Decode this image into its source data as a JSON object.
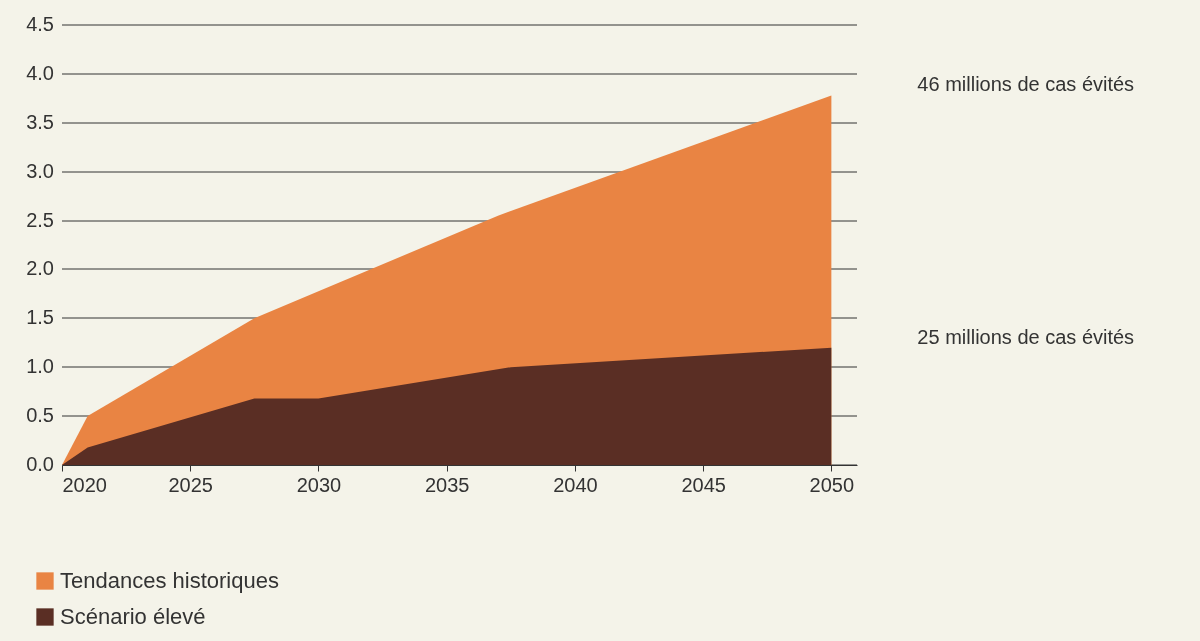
{
  "chart_data": {
    "type": "area",
    "series": [
      {
        "name": "Tendances historiques",
        "color": "#e98443",
        "x": [
          2020,
          2021,
          2027.5,
          2037,
          2050
        ],
        "values": [
          0,
          0.5,
          1.5,
          2.55,
          3.78
        ]
      },
      {
        "name": "Scénario élevé",
        "color": "#5a2e24",
        "x": [
          2020,
          2021,
          2027.5,
          2030,
          2037.5,
          2050
        ],
        "values": [
          0,
          0.18,
          0.68,
          0.68,
          1.0,
          1.2
        ]
      }
    ],
    "xlim": [
      2020,
      2051
    ],
    "xticks": [
      2020,
      2025,
      2030,
      2035,
      2040,
      2045,
      2050
    ],
    "ylim": [
      0,
      4.5
    ],
    "yticks": [
      {
        "value": 0,
        "label": "0.0"
      },
      {
        "value": 0.5,
        "label": "0.5"
      },
      {
        "value": 1,
        "label": "1.0"
      },
      {
        "value": 1.5,
        "label": "1.5"
      },
      {
        "value": 2,
        "label": "2.0"
      },
      {
        "value": 2.5,
        "label": "2.5"
      },
      {
        "value": 3,
        "label": "3.0"
      },
      {
        "value": 3.5,
        "label": "3.5"
      },
      {
        "value": 4,
        "label": "4.0"
      },
      {
        "value": 4.5,
        "label": "4.5"
      }
    ],
    "grid": "y",
    "legend": "bottom left",
    "annotations": [
      "46 millions de cas évités",
      "25 millions de cas évités"
    ]
  }
}
